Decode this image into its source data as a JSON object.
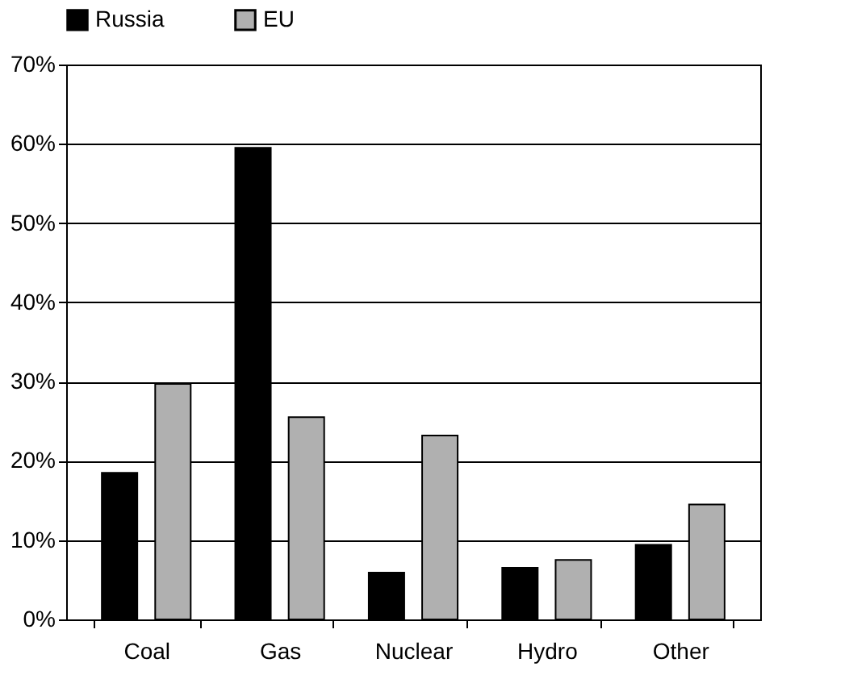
{
  "chart_data": {
    "type": "bar",
    "categories": [
      "Coal",
      "Gas",
      "Nuclear",
      "Hydro",
      "Other"
    ],
    "series": [
      {
        "name": "Russia",
        "color": "#000000",
        "values": [
          18.5,
          59.5,
          5.9,
          6.5,
          9.4
        ]
      },
      {
        "name": "EU",
        "color": "#b0b0b0",
        "values": [
          29.7,
          25.5,
          23.2,
          7.5,
          14.5
        ]
      }
    ],
    "ylim": [
      0,
      70
    ],
    "yticks": [
      {
        "value": 0,
        "label": "0%"
      },
      {
        "value": 10,
        "label": "10%"
      },
      {
        "value": 20,
        "label": "20%"
      },
      {
        "value": 30,
        "label": "30%"
      },
      {
        "value": 40,
        "label": "40%"
      },
      {
        "value": 50,
        "label": "50%"
      },
      {
        "value": 60,
        "label": "60%"
      },
      {
        "value": 70,
        "label": "70%"
      }
    ],
    "grid": "y",
    "legend": "top"
  }
}
